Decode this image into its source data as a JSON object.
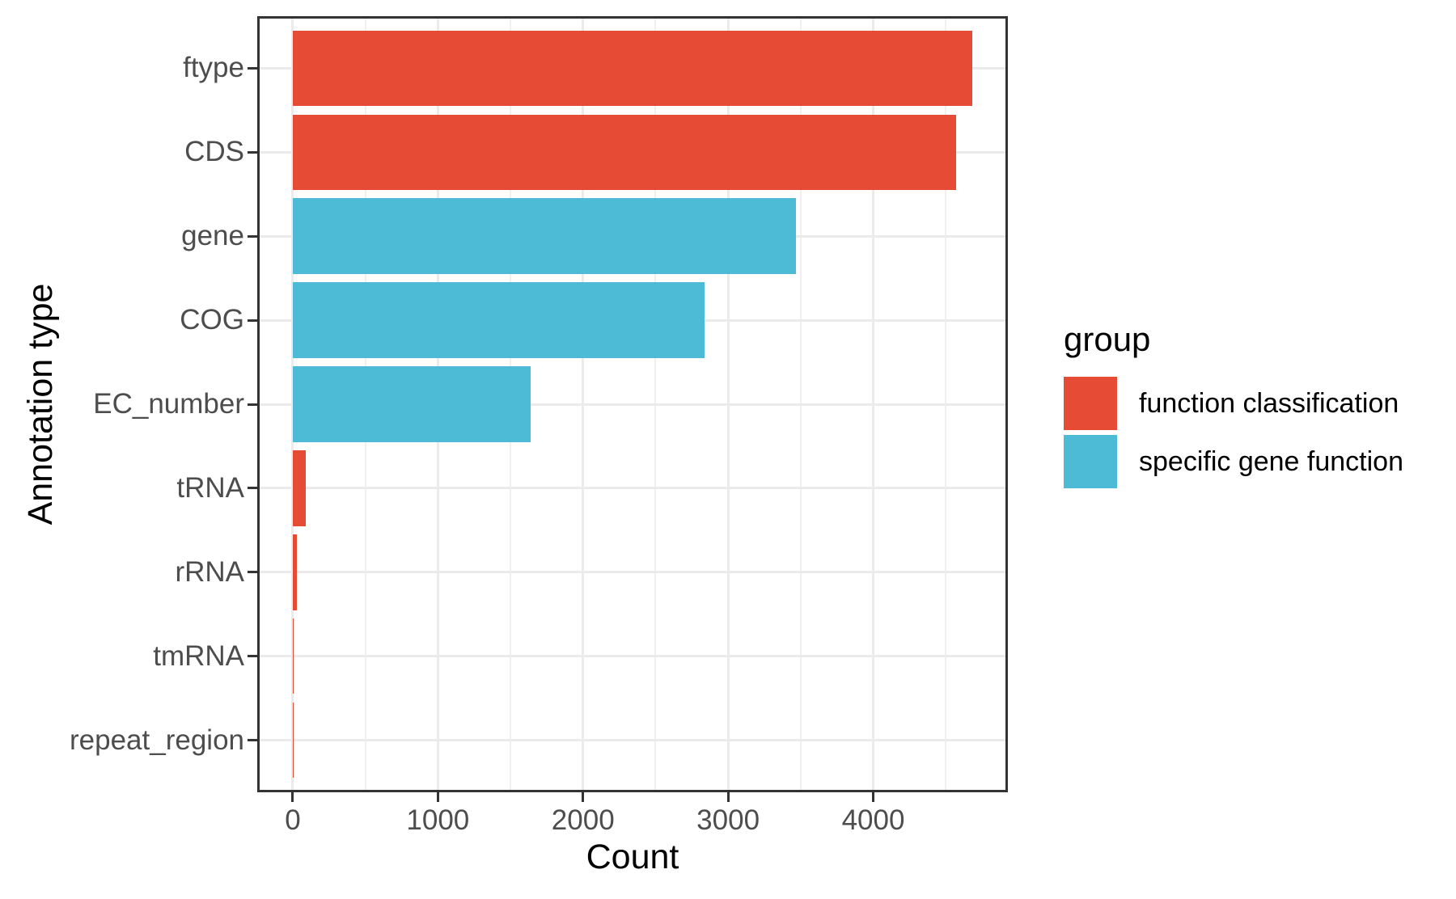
{
  "chart_data": {
    "type": "bar",
    "orientation": "horizontal",
    "title": "",
    "xlabel": "Count",
    "ylabel": "Annotation type",
    "categories": [
      "ftype",
      "CDS",
      "gene",
      "COG",
      "EC_number",
      "tRNA",
      "rRNA",
      "tmRNA",
      "repeat_region"
    ],
    "values": [
      4685,
      4570,
      3470,
      2840,
      1640,
      89,
      30,
      1,
      1
    ],
    "bar_groups": [
      "function classification",
      "function classification",
      "specific gene function",
      "specific gene function",
      "specific gene function",
      "function classification",
      "function classification",
      "function classification",
      "function classification"
    ],
    "group_colors": {
      "function classification": "#E64B35",
      "specific gene function": "#4DBBD5"
    },
    "x_major_ticks": [
      0,
      1000,
      2000,
      3000,
      4000
    ],
    "x_minor_ticks": [
      500,
      1500,
      2500,
      3500,
      4500
    ],
    "xlim": [
      -234,
      4917
    ],
    "grid": "major and minor vertical, major horizontal",
    "legend": {
      "title": "group",
      "position": "right",
      "entries": [
        {
          "label": "function classification",
          "color": "#E64B35"
        },
        {
          "label": "specific gene function",
          "color": "#4DBBD5"
        }
      ]
    },
    "colors": {
      "panel_border": "#333333",
      "grid_major": "#EBEBEB",
      "tick_label": "#4D4D4D",
      "axis_title": "#000000",
      "background": "#FFFFFF"
    }
  }
}
